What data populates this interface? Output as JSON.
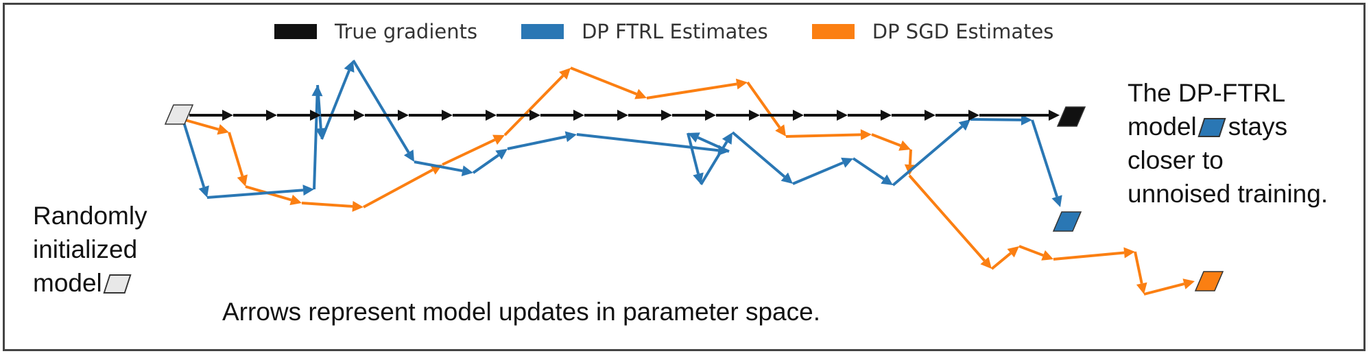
{
  "legend": {
    "true_label": "True gradients",
    "ftrl_label": "DP FTRL Estimates",
    "sgd_label": "DP SGD Estimates"
  },
  "colors": {
    "true": "#111111",
    "ftrl": "#2a77b4",
    "sgd": "#fb7f12",
    "init_marker": "#e8e8e8",
    "border": "#444444"
  },
  "annotations": {
    "left_line1": "Randomly",
    "left_line2": "initialized",
    "left_line3": "model",
    "right_line1": "The DP-FTRL",
    "right_line2_pre": "model",
    "right_line2_post": "stays",
    "right_line3": "closer to",
    "right_line4": "unnoised training.",
    "caption": "Arrows represent model updates in parameter space."
  }
}
